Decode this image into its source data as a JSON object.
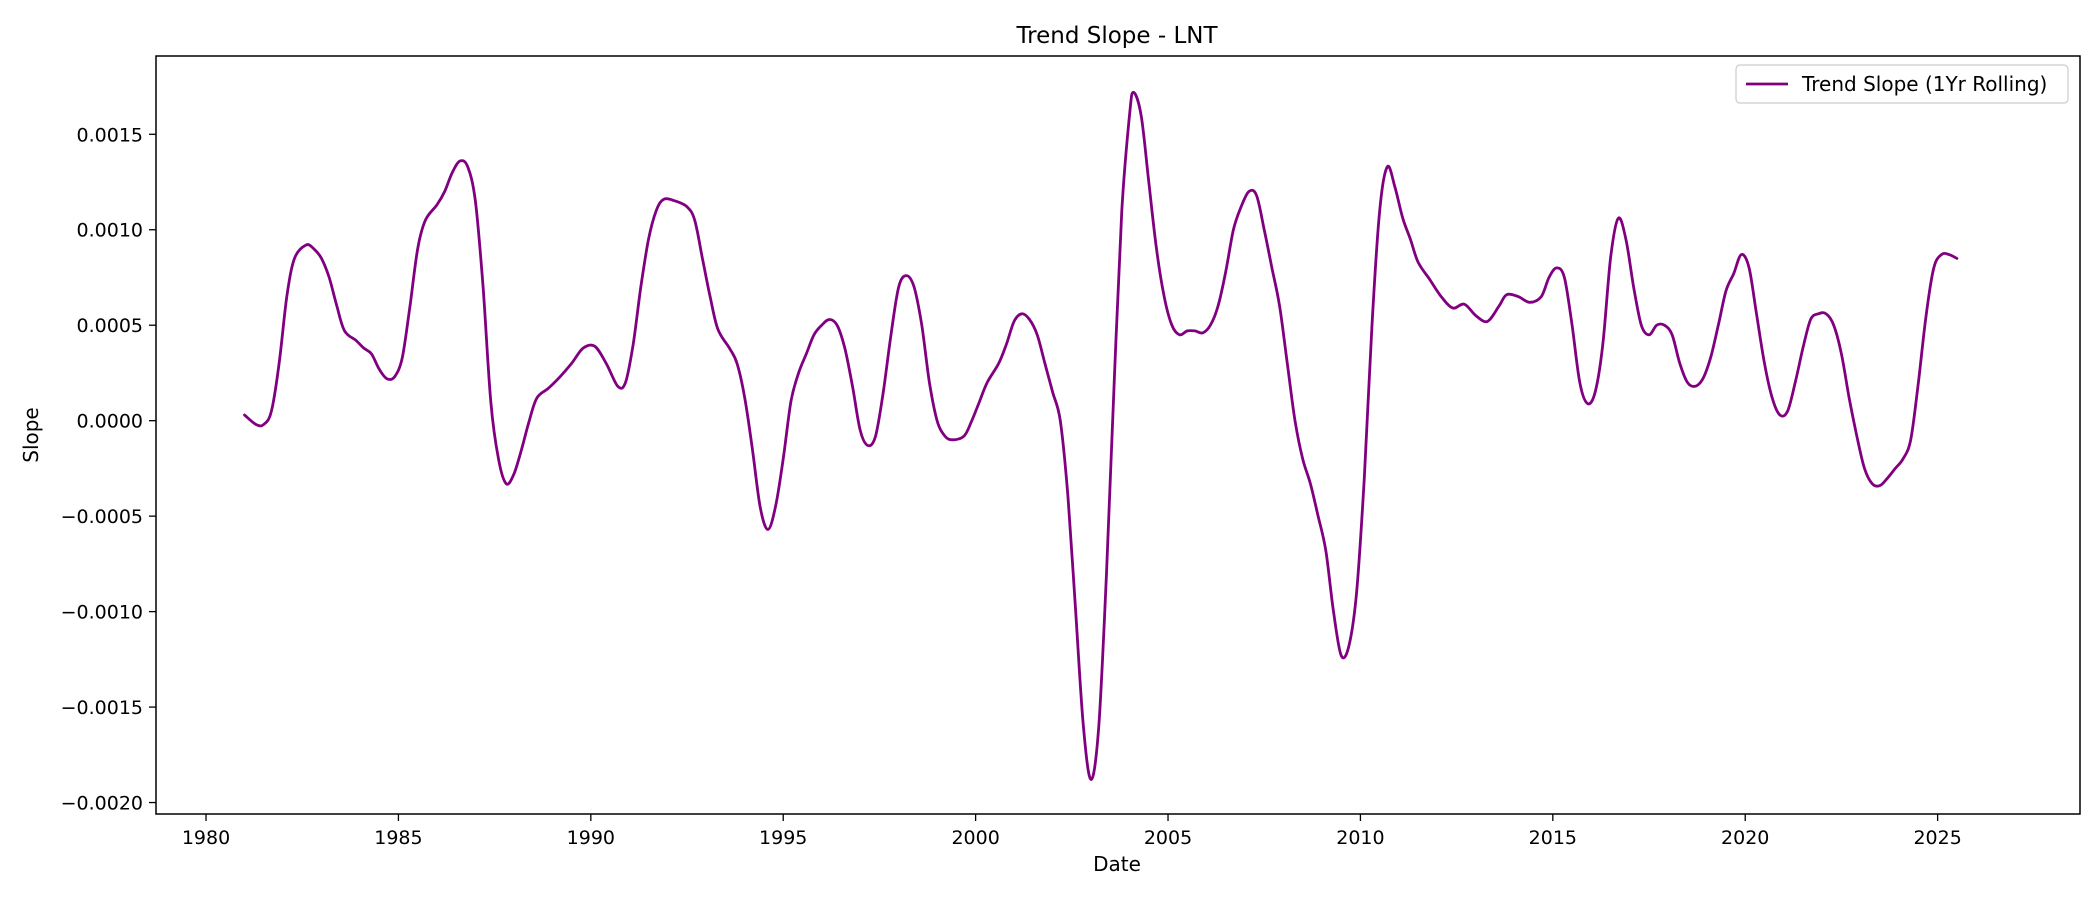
{
  "chart_data": {
    "type": "line",
    "title": "Trend Slope - LNT",
    "xlabel": "Date",
    "ylabel": "Slope",
    "xlim": [
      1978.7,
      2028.7
    ],
    "ylim": [
      -0.00206,
      0.00191
    ],
    "x_ticks": [
      1980,
      1985,
      1990,
      1995,
      2000,
      2005,
      2010,
      2015,
      2020,
      2025
    ],
    "x_tick_labels": [
      "1980",
      "1985",
      "1990",
      "1995",
      "2000",
      "2005",
      "2010",
      "2015",
      "2020",
      "2025"
    ],
    "y_ticks": [
      0.0015,
      0.001,
      0.0005,
      0.0,
      -0.0005,
      -0.001,
      -0.0015,
      -0.002
    ],
    "y_tick_labels": [
      "0.0015",
      "0.0010",
      "0.0005",
      "0.0000",
      "−0.0005",
      "−0.0010",
      "−0.0015",
      "−0.0020"
    ],
    "grid": false,
    "legend_position": "top-right",
    "series": [
      {
        "name": "Trend Slope (1Yr Rolling)",
        "color": "#800080",
        "points": [
          [
            1981.0,
            3e-05
          ],
          [
            1981.3,
            -2e-05
          ],
          [
            1981.5,
            -2e-05
          ],
          [
            1981.7,
            5e-05
          ],
          [
            1981.9,
            0.0003
          ],
          [
            1982.1,
            0.00065
          ],
          [
            1982.3,
            0.00085
          ],
          [
            1982.6,
            0.00092
          ],
          [
            1982.8,
            0.0009
          ],
          [
            1983.0,
            0.00085
          ],
          [
            1983.2,
            0.00075
          ],
          [
            1983.4,
            0.0006
          ],
          [
            1983.6,
            0.00047
          ],
          [
            1983.9,
            0.00042
          ],
          [
            1984.1,
            0.00038
          ],
          [
            1984.3,
            0.00035
          ],
          [
            1984.5,
            0.00027
          ],
          [
            1984.7,
            0.00022
          ],
          [
            1984.9,
            0.00023
          ],
          [
            1985.1,
            0.00033
          ],
          [
            1985.3,
            0.0006
          ],
          [
            1985.5,
            0.0009
          ],
          [
            1985.7,
            0.00105
          ],
          [
            1986.0,
            0.00113
          ],
          [
            1986.2,
            0.0012
          ],
          [
            1986.4,
            0.0013
          ],
          [
            1986.6,
            0.00136
          ],
          [
            1986.8,
            0.00133
          ],
          [
            1987.0,
            0.00115
          ],
          [
            1987.2,
            0.0007
          ],
          [
            1987.4,
            0.0001
          ],
          [
            1987.6,
            -0.0002
          ],
          [
            1987.8,
            -0.00033
          ],
          [
            1988.0,
            -0.00028
          ],
          [
            1988.2,
            -0.00015
          ],
          [
            1988.4,
            0.0
          ],
          [
            1988.6,
            0.00012
          ],
          [
            1988.9,
            0.00017
          ],
          [
            1989.2,
            0.00023
          ],
          [
            1989.5,
            0.0003
          ],
          [
            1989.8,
            0.00038
          ],
          [
            1990.1,
            0.00039
          ],
          [
            1990.4,
            0.0003
          ],
          [
            1990.7,
            0.00018
          ],
          [
            1990.9,
            0.0002
          ],
          [
            1991.1,
            0.0004
          ],
          [
            1991.3,
            0.0007
          ],
          [
            1991.5,
            0.00095
          ],
          [
            1991.7,
            0.0011
          ],
          [
            1991.9,
            0.00116
          ],
          [
            1992.2,
            0.00115
          ],
          [
            1992.5,
            0.00112
          ],
          [
            1992.7,
            0.00105
          ],
          [
            1992.9,
            0.00085
          ],
          [
            1993.1,
            0.00065
          ],
          [
            1993.3,
            0.00048
          ],
          [
            1993.6,
            0.00038
          ],
          [
            1993.8,
            0.0003
          ],
          [
            1994.0,
            0.00012
          ],
          [
            1994.2,
            -0.00015
          ],
          [
            1994.4,
            -0.00045
          ],
          [
            1994.6,
            -0.00057
          ],
          [
            1994.8,
            -0.00045
          ],
          [
            1995.0,
            -0.0002
          ],
          [
            1995.2,
            0.0001
          ],
          [
            1995.4,
            0.00025
          ],
          [
            1995.6,
            0.00035
          ],
          [
            1995.8,
            0.00045
          ],
          [
            1996.0,
            0.0005
          ],
          [
            1996.2,
            0.00053
          ],
          [
            1996.4,
            0.0005
          ],
          [
            1996.6,
            0.00038
          ],
          [
            1996.8,
            0.00018
          ],
          [
            1997.0,
            -5e-05
          ],
          [
            1997.2,
            -0.00013
          ],
          [
            1997.4,
            -8e-05
          ],
          [
            1997.6,
            0.00015
          ],
          [
            1997.8,
            0.00045
          ],
          [
            1998.0,
            0.0007
          ],
          [
            1998.2,
            0.00076
          ],
          [
            1998.4,
            0.0007
          ],
          [
            1998.6,
            0.0005
          ],
          [
            1998.8,
            0.0002
          ],
          [
            1999.0,
            0.0
          ],
          [
            1999.2,
            -8e-05
          ],
          [
            1999.4,
            -0.0001
          ],
          [
            1999.7,
            -8e-05
          ],
          [
            1999.9,
            0.0
          ],
          [
            2000.1,
            0.0001
          ],
          [
            2000.3,
            0.0002
          ],
          [
            2000.6,
            0.0003
          ],
          [
            2000.8,
            0.0004
          ],
          [
            2001.0,
            0.00052
          ],
          [
            2001.2,
            0.00056
          ],
          [
            2001.4,
            0.00053
          ],
          [
            2001.6,
            0.00045
          ],
          [
            2001.8,
            0.0003
          ],
          [
            2002.0,
            0.00015
          ],
          [
            2002.2,
            0.0
          ],
          [
            2002.4,
            -0.0004
          ],
          [
            2002.6,
            -0.001
          ],
          [
            2002.8,
            -0.0016
          ],
          [
            2003.0,
            -0.00188
          ],
          [
            2003.2,
            -0.0016
          ],
          [
            2003.4,
            -0.0008
          ],
          [
            2003.6,
            0.0002
          ],
          [
            2003.8,
            0.0011
          ],
          [
            2004.0,
            0.0016
          ],
          [
            2004.1,
            0.00172
          ],
          [
            2004.3,
            0.0016
          ],
          [
            2004.5,
            0.00125
          ],
          [
            2004.7,
            0.0009
          ],
          [
            2004.9,
            0.00065
          ],
          [
            2005.1,
            0.0005
          ],
          [
            2005.3,
            0.00045
          ],
          [
            2005.5,
            0.00047
          ],
          [
            2005.7,
            0.00047
          ],
          [
            2005.9,
            0.00046
          ],
          [
            2006.1,
            0.0005
          ],
          [
            2006.3,
            0.0006
          ],
          [
            2006.5,
            0.00078
          ],
          [
            2006.7,
            0.001
          ],
          [
            2006.9,
            0.00112
          ],
          [
            2007.1,
            0.0012
          ],
          [
            2007.3,
            0.00118
          ],
          [
            2007.5,
            0.001
          ],
          [
            2007.7,
            0.0008
          ],
          [
            2007.9,
            0.0006
          ],
          [
            2008.1,
            0.0003
          ],
          [
            2008.3,
            0.0
          ],
          [
            2008.5,
            -0.0002
          ],
          [
            2008.7,
            -0.00033
          ],
          [
            2008.9,
            -0.0005
          ],
          [
            2009.1,
            -0.00068
          ],
          [
            2009.3,
            -0.001
          ],
          [
            2009.5,
            -0.00123
          ],
          [
            2009.7,
            -0.00118
          ],
          [
            2009.9,
            -0.0009
          ],
          [
            2010.1,
            -0.0003
          ],
          [
            2010.3,
            0.0005
          ],
          [
            2010.5,
            0.0011
          ],
          [
            2010.7,
            0.00133
          ],
          [
            2010.9,
            0.00122
          ],
          [
            2011.1,
            0.00106
          ],
          [
            2011.3,
            0.00095
          ],
          [
            2011.5,
            0.00083
          ],
          [
            2011.8,
            0.00074
          ],
          [
            2012.1,
            0.00065
          ],
          [
            2012.4,
            0.00059
          ],
          [
            2012.7,
            0.00061
          ],
          [
            2013.0,
            0.00055
          ],
          [
            2013.3,
            0.00052
          ],
          [
            2013.6,
            0.0006
          ],
          [
            2013.8,
            0.00066
          ],
          [
            2014.1,
            0.00065
          ],
          [
            2014.4,
            0.00062
          ],
          [
            2014.7,
            0.00065
          ],
          [
            2014.9,
            0.00075
          ],
          [
            2015.1,
            0.0008
          ],
          [
            2015.3,
            0.00075
          ],
          [
            2015.5,
            0.0005
          ],
          [
            2015.7,
            0.0002
          ],
          [
            2015.9,
            9e-05
          ],
          [
            2016.1,
            0.00015
          ],
          [
            2016.3,
            0.0004
          ],
          [
            2016.5,
            0.00085
          ],
          [
            2016.7,
            0.00106
          ],
          [
            2016.9,
            0.00095
          ],
          [
            2017.1,
            0.0007
          ],
          [
            2017.3,
            0.0005
          ],
          [
            2017.5,
            0.00045
          ],
          [
            2017.7,
            0.0005
          ],
          [
            2017.9,
            0.0005
          ],
          [
            2018.1,
            0.00045
          ],
          [
            2018.3,
            0.0003
          ],
          [
            2018.5,
            0.0002
          ],
          [
            2018.7,
            0.00018
          ],
          [
            2018.9,
            0.00022
          ],
          [
            2019.1,
            0.00033
          ],
          [
            2019.3,
            0.0005
          ],
          [
            2019.5,
            0.00068
          ],
          [
            2019.7,
            0.00077
          ],
          [
            2019.9,
            0.00087
          ],
          [
            2020.1,
            0.0008
          ],
          [
            2020.3,
            0.00055
          ],
          [
            2020.5,
            0.0003
          ],
          [
            2020.7,
            0.00012
          ],
          [
            2020.9,
            3e-05
          ],
          [
            2021.1,
            5e-05
          ],
          [
            2021.3,
            0.0002
          ],
          [
            2021.5,
            0.00038
          ],
          [
            2021.7,
            0.00053
          ],
          [
            2021.9,
            0.00056
          ],
          [
            2022.1,
            0.00056
          ],
          [
            2022.3,
            0.0005
          ],
          [
            2022.5,
            0.00035
          ],
          [
            2022.7,
            0.00012
          ],
          [
            2022.9,
            -8e-05
          ],
          [
            2023.1,
            -0.00025
          ],
          [
            2023.3,
            -0.00033
          ],
          [
            2023.5,
            -0.00034
          ],
          [
            2023.7,
            -0.0003
          ],
          [
            2023.9,
            -0.00025
          ],
          [
            2024.1,
            -0.0002
          ],
          [
            2024.3,
            -0.0001
          ],
          [
            2024.5,
            0.0002
          ],
          [
            2024.7,
            0.00055
          ],
          [
            2024.9,
            0.0008
          ],
          [
            2025.1,
            0.00087
          ],
          [
            2025.3,
            0.00087
          ],
          [
            2025.5,
            0.00085
          ]
        ]
      }
    ]
  }
}
